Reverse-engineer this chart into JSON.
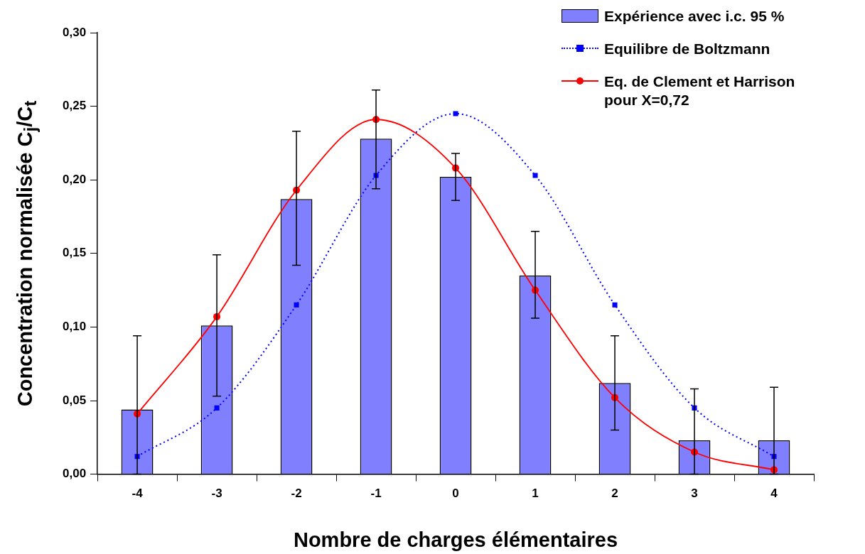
{
  "chart_data": {
    "type": "bar",
    "xlabel": "Nombre de charges élémentaires",
    "ylabel": "Concentration normalisée C$_{j}$/C$_{t}$",
    "categories": [
      "-4",
      "-3",
      "-2",
      "-1",
      "0",
      "1",
      "2",
      "3",
      "4"
    ],
    "series": [
      {
        "name": "Expérience avec i.c. 95 %",
        "color": "#8080ff",
        "values": [
          0.044,
          0.101,
          0.187,
          0.228,
          0.202,
          0.135,
          0.062,
          0.023,
          0.023
        ],
        "errors": [
          [
            0,
            0.094
          ],
          [
            0.053,
            0.149
          ],
          [
            0.142,
            0.233
          ],
          [
            0.194,
            0.261
          ],
          [
            0.186,
            0.218
          ],
          [
            0.106,
            0.165
          ],
          [
            0.03,
            0.094
          ],
          [
            0,
            0.058
          ],
          [
            0,
            0.059
          ]
        ]
      },
      {
        "name": "Equilibre de Boltzmann",
        "type": "line",
        "color": "#0000ff",
        "marker": "square",
        "line_style": "dotted",
        "values": [
          0.012,
          0.045,
          0.115,
          0.203,
          0.245,
          0.203,
          0.115,
          0.045,
          0.012
        ]
      },
      {
        "name": "Eq. de Clement et Harrison pour X=0,72",
        "type": "line",
        "color": "#ff0000",
        "marker": "circle",
        "line_style": "solid",
        "values": [
          0.041,
          0.107,
          0.193,
          0.241,
          0.208,
          0.125,
          0.052,
          0.015,
          0.003
        ]
      }
    ],
    "ylim": [
      0,
      0.3
    ],
    "yticks": [
      {
        "value": 0,
        "label": "0,00"
      },
      {
        "value": 0.05,
        "label": "0,05"
      },
      {
        "value": 0.1,
        "label": "0,10"
      },
      {
        "value": 0.15,
        "label": "0,15"
      },
      {
        "value": 0.2,
        "label": "0,20"
      },
      {
        "value": 0.25,
        "label": "0,25"
      },
      {
        "value": 0.3,
        "label": "0,30"
      }
    ],
    "grid": false,
    "legend": "top right"
  }
}
